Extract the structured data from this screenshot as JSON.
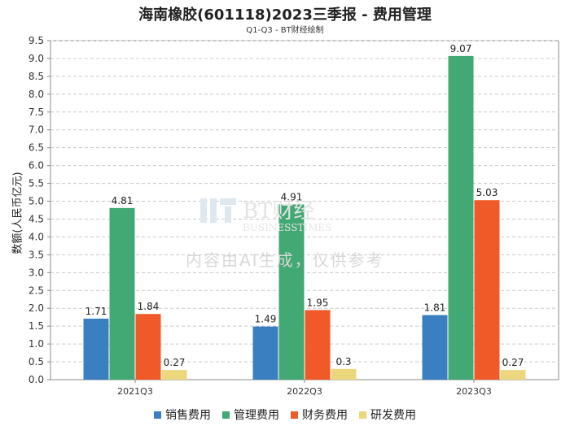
{
  "title": "海南橡胶(601118)2023三季报 - 费用管理",
  "subtitle": "Q1-Q3 - BT财经绘制",
  "watermark": {
    "brand_cn": "BT财经",
    "brand_en": "BUSINESSTIMES",
    "notice": "内容由AI生成，仅供参考"
  },
  "chart_data": {
    "type": "bar",
    "title": "海南橡胶(601118)2023三季报 - 费用管理",
    "subtitle": "Q1-Q3 - BT财经绘制",
    "xlabel": "",
    "ylabel": "数额(人民币亿元)",
    "ylim": [
      0,
      9.5
    ],
    "ytick_step": 0.5,
    "yticks": [
      "0.0",
      "0.5",
      "1.0",
      "1.5",
      "2.0",
      "2.5",
      "3.0",
      "3.5",
      "4.0",
      "4.5",
      "5.0",
      "5.5",
      "6.0",
      "6.5",
      "7.0",
      "7.5",
      "8.0",
      "8.5",
      "9.0",
      "9.5"
    ],
    "grid": true,
    "legend_position": "bottom",
    "categories": [
      "2021Q3",
      "2022Q3",
      "2023Q3"
    ],
    "series": [
      {
        "name": "销售费用",
        "color": "#3a80c0",
        "values": [
          1.71,
          1.49,
          1.81
        ],
        "labels": [
          "1.71",
          "1.49",
          "1.81"
        ]
      },
      {
        "name": "管理费用",
        "color": "#42a874",
        "values": [
          4.81,
          4.91,
          9.07
        ],
        "labels": [
          "4.81",
          "4.91",
          "9.07"
        ]
      },
      {
        "name": "财务费用",
        "color": "#f05a28",
        "values": [
          1.84,
          1.95,
          5.03
        ],
        "labels": [
          "1.84",
          "1.95",
          "5.03"
        ]
      },
      {
        "name": "研发费用",
        "color": "#ecd77c",
        "values": [
          0.27,
          0.3,
          0.27
        ],
        "labels": [
          "0.27",
          "0.3",
          "0.27"
        ]
      }
    ]
  }
}
